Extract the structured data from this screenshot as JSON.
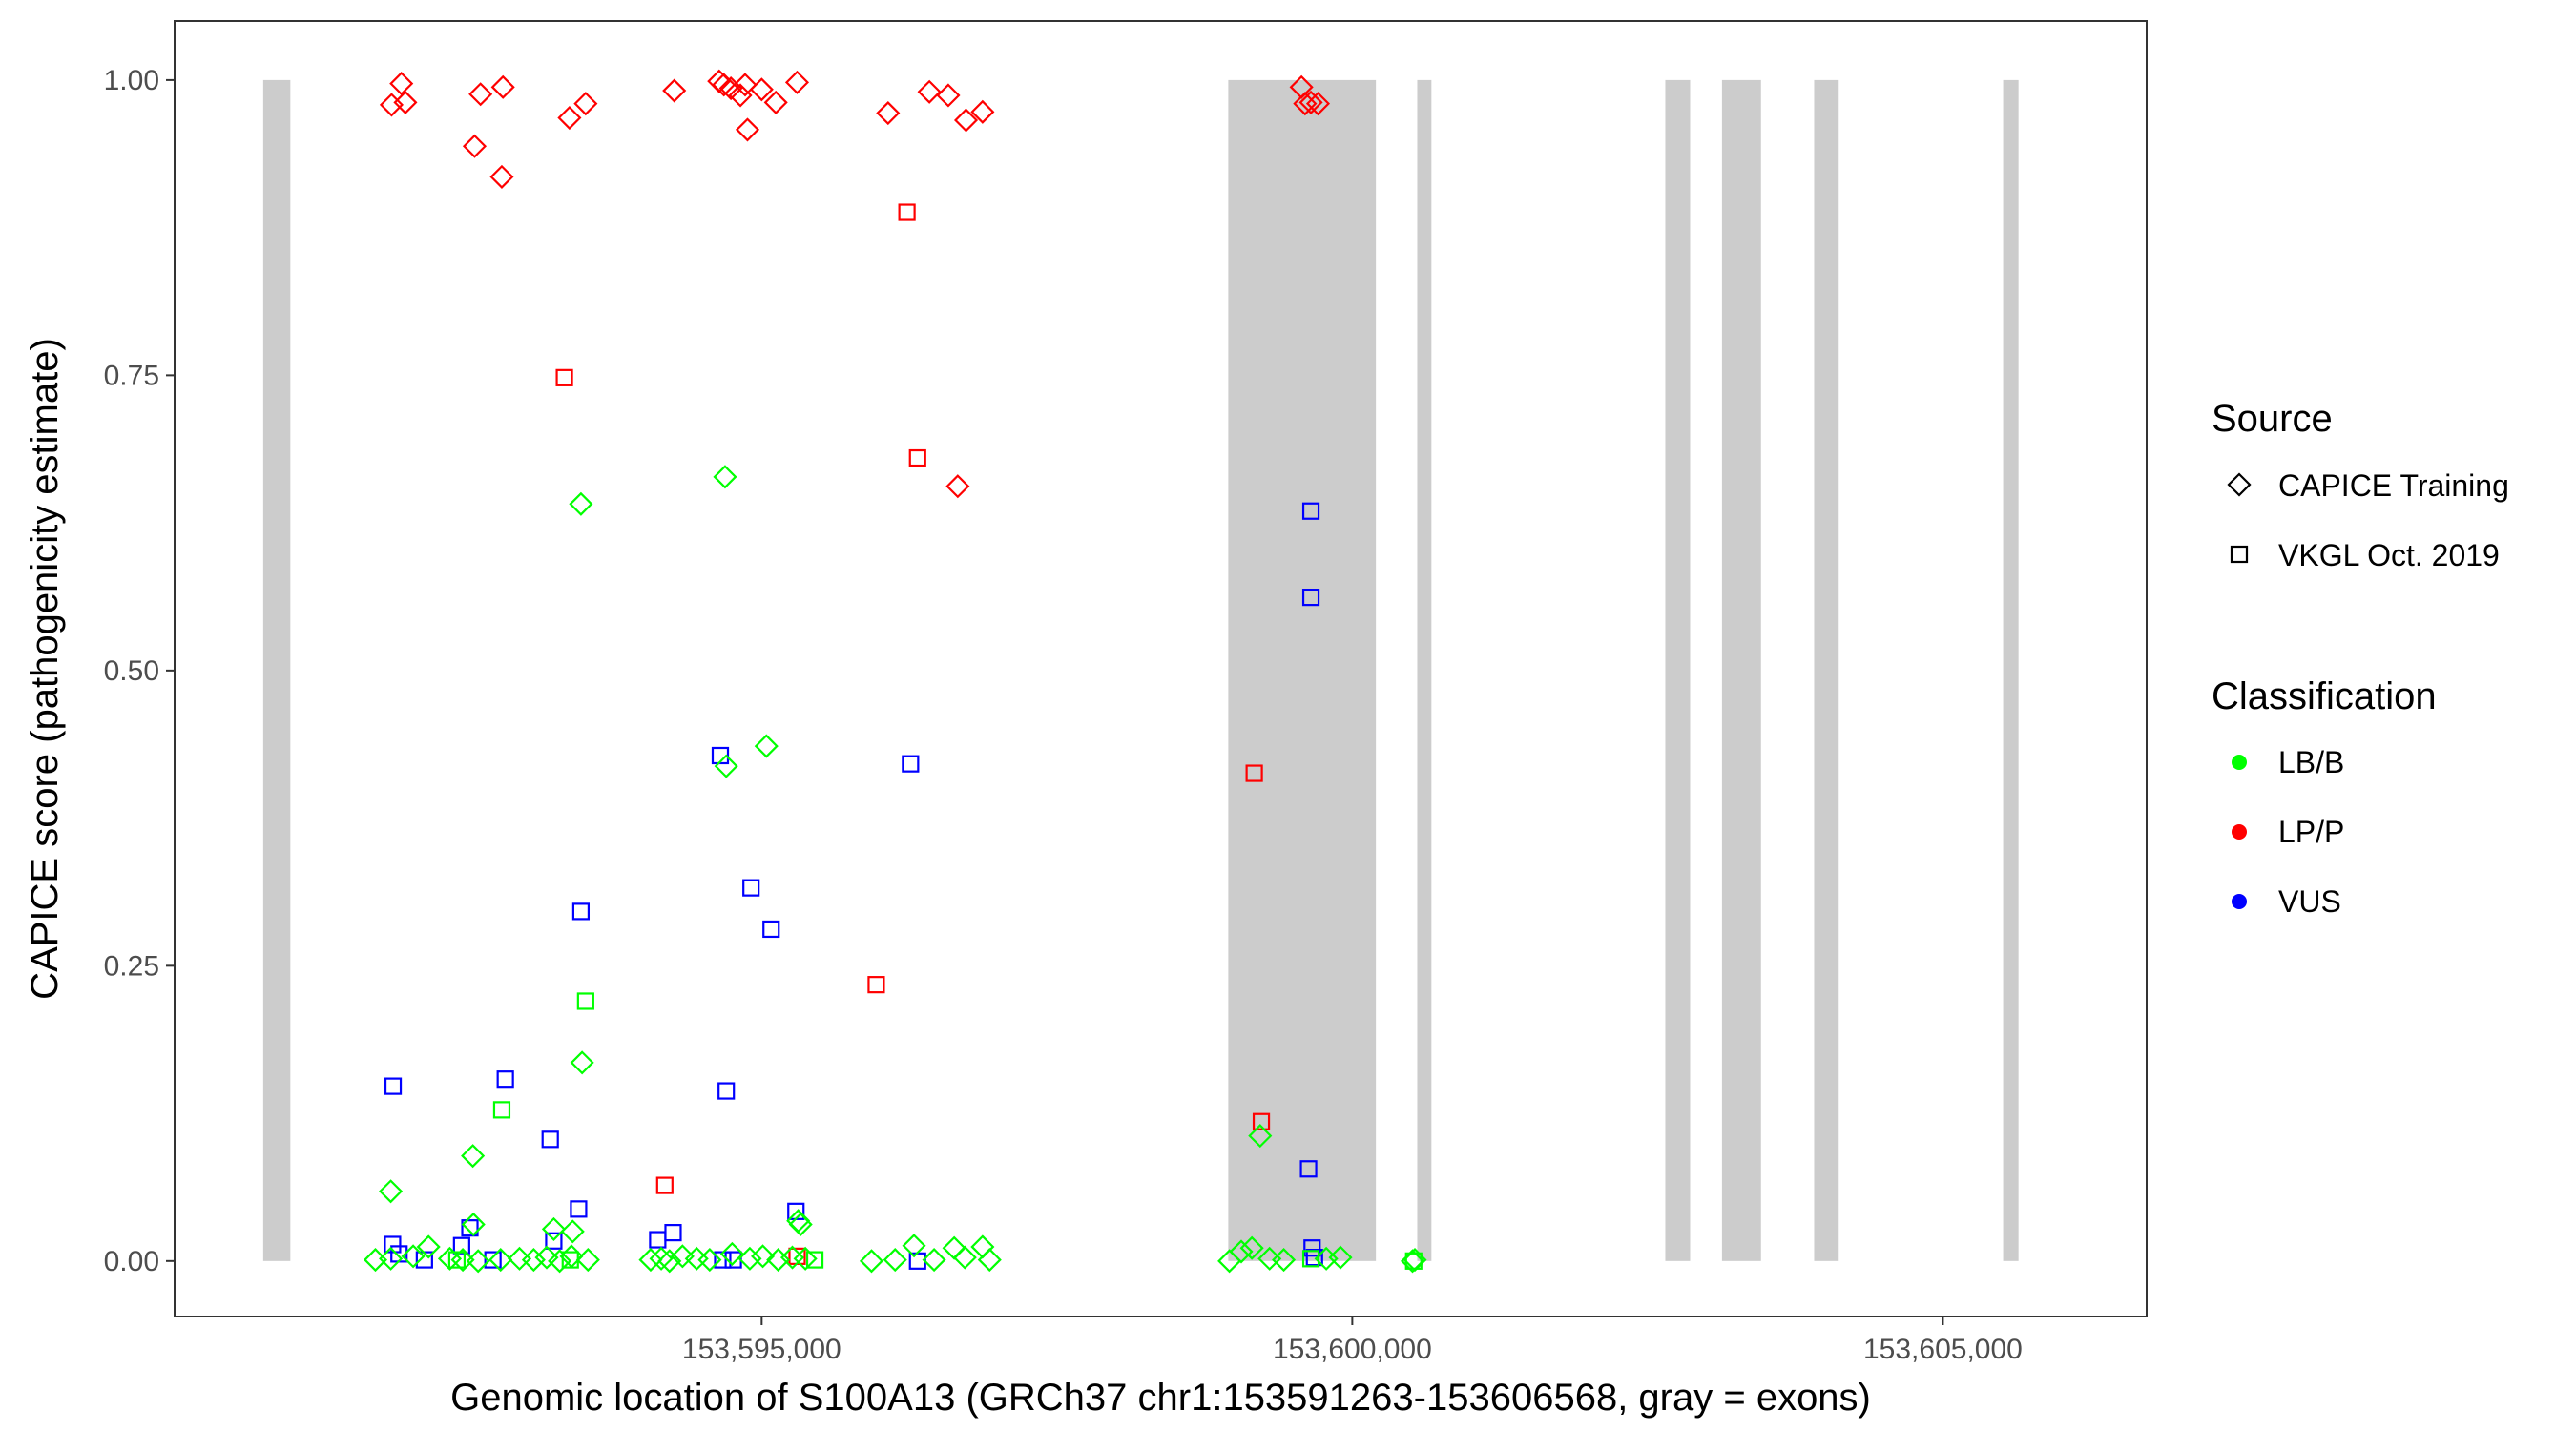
{
  "chart_data": {
    "type": "scatter",
    "xlabel": "Genomic location of S100A13 (GRCh37 chr1:153591263-153606568, gray = exons)",
    "ylabel": "CAPICE score (pathogenicity estimate)",
    "xlim": [
      153590030,
      153606725
    ],
    "ylim": [
      -0.047,
      1.05
    ],
    "xticks": [
      153595000,
      153600000,
      153605000
    ],
    "xtick_labels": [
      "153,595,000",
      "153,600,000",
      "153,605,000"
    ],
    "yticks": [
      0,
      0.25,
      0.5,
      0.75,
      1.0
    ],
    "ytick_labels": [
      "0.00",
      "0.25",
      "0.50",
      "0.75",
      "1.00"
    ],
    "grid": false,
    "exons": [
      [
        153590780,
        153591010
      ],
      [
        153598950,
        153600200
      ],
      [
        153600550,
        153600670
      ],
      [
        153602650,
        153602860
      ],
      [
        153603130,
        153603460
      ],
      [
        153603910,
        153604110
      ],
      [
        153605510,
        153605640
      ]
    ],
    "exon_color": "#cccccc",
    "legend": {
      "placement": "right",
      "source": {
        "title": "Source",
        "items": [
          {
            "label": "CAPICE Training",
            "shape": "diamond"
          },
          {
            "label": "VKGL Oct. 2019",
            "shape": "square"
          }
        ]
      },
      "classification": {
        "title": "Classification",
        "items": [
          {
            "label": "LB/B",
            "color": "#00ff00"
          },
          {
            "label": "LP/P",
            "color": "#ff0000"
          },
          {
            "label": "VUS",
            "color": "#0000ff"
          }
        ]
      }
    },
    "series": [
      {
        "name": "LP/P",
        "color": "#ff0000",
        "source": "CAPICE Training",
        "points": [
          [
            153591867,
            0.979
          ],
          [
            153591950,
            0.997
          ],
          [
            153591984,
            0.981
          ],
          [
            153592620,
            0.988
          ],
          [
            153592810,
            0.994
          ],
          [
            153592570,
            0.944
          ],
          [
            153592800,
            0.918
          ],
          [
            153593373,
            0.968
          ],
          [
            153593510,
            0.98
          ],
          [
            153594260,
            0.991
          ],
          [
            153594640,
            0.999
          ],
          [
            153594680,
            0.996
          ],
          [
            153594860,
            0.996
          ],
          [
            153594740,
            0.993
          ],
          [
            153594820,
            0.987
          ],
          [
            153595000,
            0.992
          ],
          [
            153595120,
            0.981
          ],
          [
            153595300,
            0.998
          ],
          [
            153594880,
            0.958
          ],
          [
            153596070,
            0.972
          ],
          [
            153596420,
            0.99
          ],
          [
            153596580,
            0.987
          ],
          [
            153596730,
            0.966
          ],
          [
            153596870,
            0.973
          ],
          [
            153596660,
            0.656
          ],
          [
            153599570,
            0.994
          ],
          [
            153599600,
            0.98
          ],
          [
            153599650,
            0.981
          ],
          [
            153599710,
            0.98
          ]
        ]
      },
      {
        "name": "LP/P",
        "color": "#ff0000",
        "source": "VKGL Oct. 2019",
        "points": [
          [
            153596230,
            0.888
          ],
          [
            153593330,
            0.748
          ],
          [
            153596320,
            0.68
          ],
          [
            153599170,
            0.413
          ],
          [
            153595970,
            0.234
          ],
          [
            153599230,
            0.118
          ],
          [
            153594180,
            0.064
          ],
          [
            153595300,
            0.004
          ]
        ]
      },
      {
        "name": "VUS",
        "color": "#0000ff",
        "source": "VKGL Oct. 2019",
        "points": [
          [
            153599650,
            0.635
          ],
          [
            153599650,
            0.562
          ],
          [
            153594650,
            0.428
          ],
          [
            153596260,
            0.421
          ],
          [
            153593470,
            0.296
          ],
          [
            153594910,
            0.316
          ],
          [
            153595080,
            0.281
          ],
          [
            153591880,
            0.148
          ],
          [
            153592830,
            0.154
          ],
          [
            153594700,
            0.144
          ],
          [
            153593210,
            0.103
          ],
          [
            153593450,
            0.044
          ],
          [
            153599630,
            0.078
          ],
          [
            153591875,
            0.014
          ],
          [
            153591930,
            0.006
          ],
          [
            153592145,
            0.001
          ],
          [
            153592460,
            0.013
          ],
          [
            153592530,
            0.028
          ],
          [
            153592725,
            0.001
          ],
          [
            153593240,
            0.017
          ],
          [
            153594120,
            0.018
          ],
          [
            153594250,
            0.024
          ],
          [
            153594670,
            0.001
          ],
          [
            153594760,
            0.001
          ],
          [
            153595290,
            0.042
          ],
          [
            153596320,
            0.0
          ],
          [
            153599660,
            0.011
          ],
          [
            153599680,
            0.003
          ]
        ]
      },
      {
        "name": "LB/B",
        "color": "#00ff00",
        "source": "CAPICE Training",
        "points": [
          [
            153594690,
            0.664
          ],
          [
            153593470,
            0.641
          ],
          [
            153595040,
            0.436
          ],
          [
            153594700,
            0.419
          ],
          [
            153593480,
            0.168
          ],
          [
            153592555,
            0.089
          ],
          [
            153599220,
            0.106
          ],
          [
            153591860,
            0.059
          ],
          [
            153592560,
            0.031
          ],
          [
            153593240,
            0.027
          ],
          [
            153593400,
            0.025
          ],
          [
            153595330,
            0.031
          ],
          [
            153595310,
            0.034
          ],
          [
            153591730,
            0.001
          ],
          [
            153591860,
            0.002
          ],
          [
            153592050,
            0.004
          ],
          [
            153592180,
            0.012
          ],
          [
            153592360,
            0.002
          ],
          [
            153592470,
            0.001
          ],
          [
            153592600,
            0.0
          ],
          [
            153592790,
            0.001
          ],
          [
            153592950,
            0.002
          ],
          [
            153593070,
            0.001
          ],
          [
            153593180,
            0.003
          ],
          [
            153593290,
            0.0
          ],
          [
            153593390,
            0.004
          ],
          [
            153593530,
            0.001
          ],
          [
            153594060,
            0.001
          ],
          [
            153594150,
            0.002
          ],
          [
            153594220,
            0.0
          ],
          [
            153594330,
            0.004
          ],
          [
            153594450,
            0.002
          ],
          [
            153594560,
            0.001
          ],
          [
            153594750,
            0.006
          ],
          [
            153594900,
            0.002
          ],
          [
            153595010,
            0.004
          ],
          [
            153595140,
            0.001
          ],
          [
            153595260,
            0.003
          ],
          [
            153595370,
            0.002
          ],
          [
            153595930,
            0.0
          ],
          [
            153596130,
            0.001
          ],
          [
            153596290,
            0.013
          ],
          [
            153596460,
            0.001
          ],
          [
            153596630,
            0.011
          ],
          [
            153596720,
            0.003
          ],
          [
            153596870,
            0.012
          ],
          [
            153596930,
            0.001
          ],
          [
            153598960,
            0.0
          ],
          [
            153599060,
            0.008
          ],
          [
            153599150,
            0.011
          ],
          [
            153599300,
            0.002
          ],
          [
            153599420,
            0.001
          ],
          [
            153599780,
            0.002
          ],
          [
            153599900,
            0.003
          ],
          [
            153600510,
            0.0
          ],
          [
            153600530,
            0.001
          ]
        ]
      },
      {
        "name": "LB/B",
        "color": "#00ff00",
        "source": "VKGL Oct. 2019",
        "points": [
          [
            153593510,
            0.22
          ],
          [
            153592800,
            0.128
          ],
          [
            153592420,
            0.001
          ],
          [
            153593380,
            0.001
          ],
          [
            153595450,
            0.001
          ],
          [
            153599650,
            0.002
          ],
          [
            153600520,
            0.0
          ]
        ]
      }
    ]
  }
}
